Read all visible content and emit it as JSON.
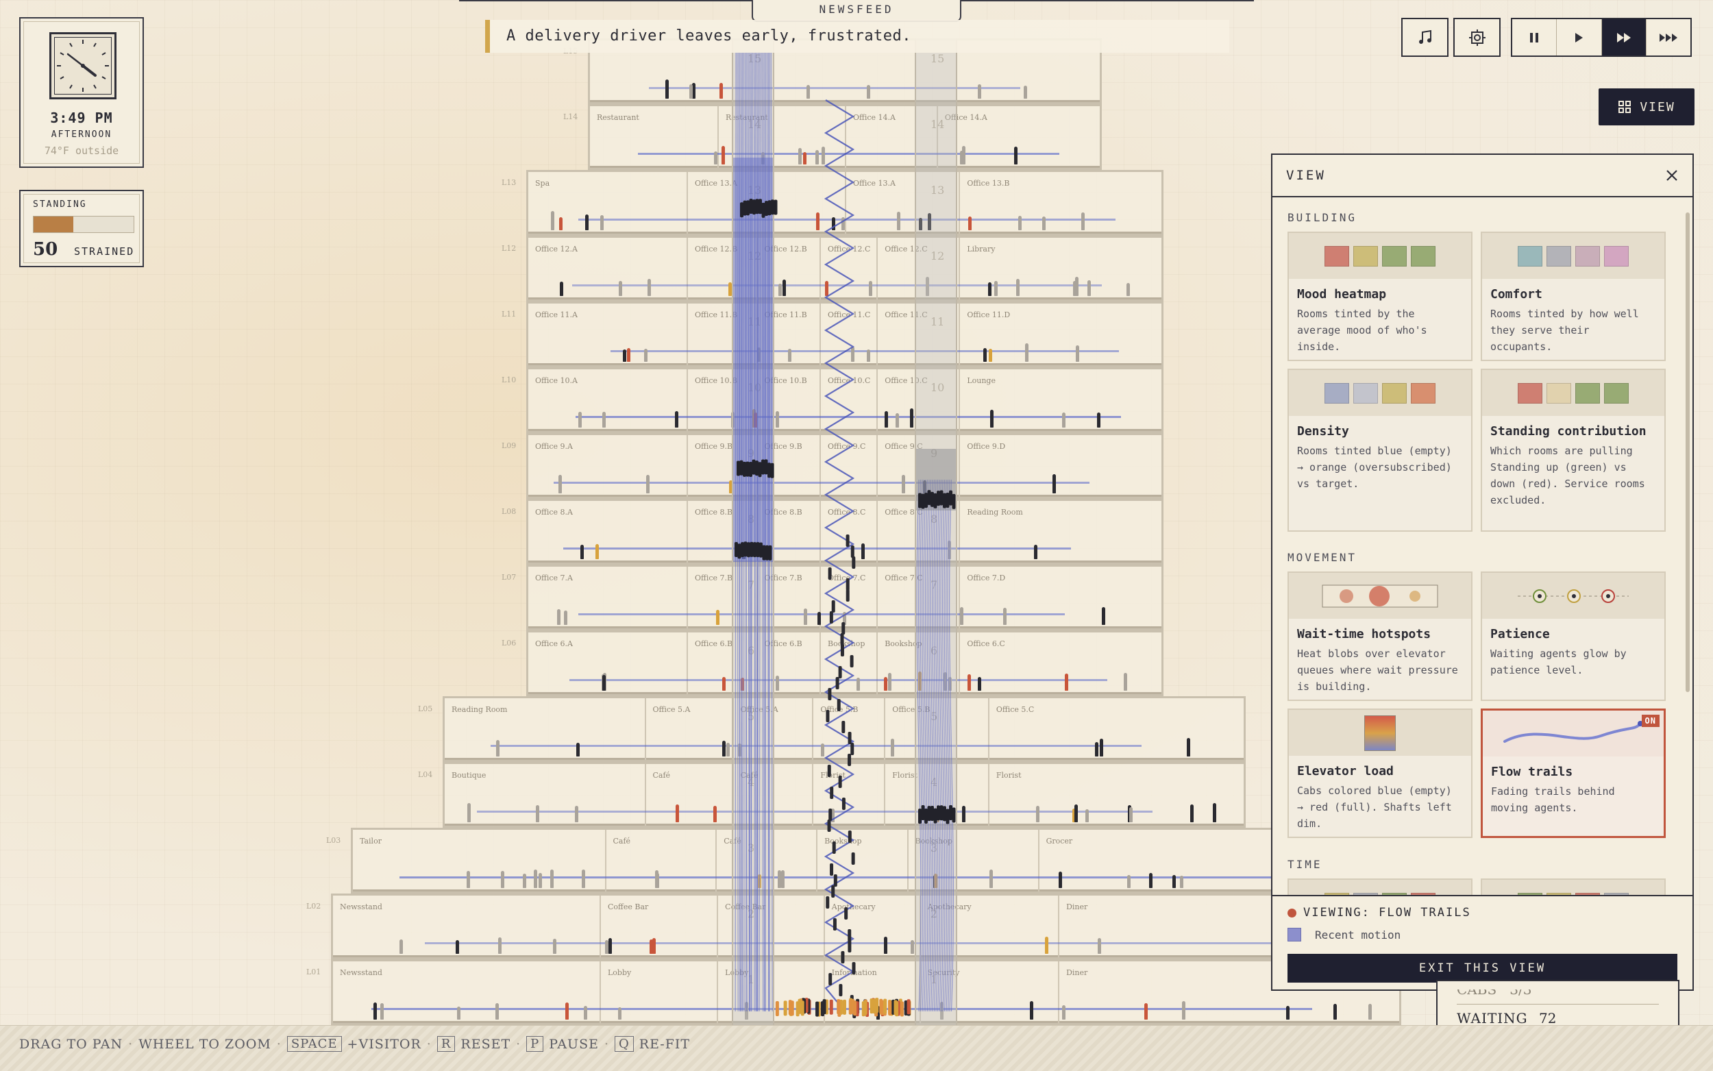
{
  "clock": {
    "time": "3:49 PM",
    "period": "AFTERNOON",
    "temperature": "74°F outside"
  },
  "standing": {
    "label": "STANDING",
    "value": "50",
    "status": "STRAINED",
    "fill_fraction": 0.4,
    "fill_color": "#b97f45"
  },
  "newsfeed": {
    "tab_label": "NEWSFEED",
    "message": "A delivery driver leaves early, frustrated."
  },
  "controls": {
    "music": "music-note-icon",
    "settings": "gear-icon",
    "speeds": [
      "pause",
      "play",
      "fast-forward",
      "fastest"
    ],
    "active_speed": "fast-forward",
    "view_button": "VIEW"
  },
  "building": {
    "floors": [
      {
        "label": "L15",
        "rooms": []
      },
      {
        "label": "L14",
        "rooms": [
          "Restaurant",
          "Restaurant",
          "Office 14.A",
          "Office 14.A"
        ]
      },
      {
        "label": "L13",
        "rooms": [
          "Spa",
          "Office 13.A",
          "Office 13.A",
          "Office 13.B"
        ]
      },
      {
        "label": "L12",
        "rooms": [
          "Office 12.A",
          "Office 12.B",
          "Office 12.B",
          "Office 12.C",
          "Office 12.C",
          "Library"
        ]
      },
      {
        "label": "L11",
        "rooms": [
          "Office 11.A",
          "Office 11.B",
          "Office 11.B",
          "Office 11.C",
          "Office 11.C",
          "Office 11.D"
        ]
      },
      {
        "label": "L10",
        "rooms": [
          "Office 10.A",
          "Office 10.B",
          "Office 10.B",
          "Office 10.C",
          "Office 10.C",
          "Lounge"
        ]
      },
      {
        "label": "L09",
        "rooms": [
          "Office 9.A",
          "Office 9.B",
          "Office 9.B",
          "Office 9.C",
          "Office 9.C",
          "Office 9.D"
        ]
      },
      {
        "label": "L08",
        "rooms": [
          "Office 8.A",
          "Office 8.B",
          "Office 8.B",
          "Office 8.C",
          "Office 8.C",
          "Reading Room"
        ]
      },
      {
        "label": "L07",
        "rooms": [
          "Office 7.A",
          "Office 7.B",
          "Office 7.B",
          "Office 7.C",
          "Office 7.C",
          "Office 7.D"
        ]
      },
      {
        "label": "L06",
        "rooms": [
          "Office 6.A",
          "Office 6.B",
          "Office 6.B",
          "Bookshop",
          "Bookshop",
          "Office 6.C"
        ]
      },
      {
        "label": "L05",
        "rooms": [
          "Reading Room",
          "Office 5.A",
          "Office 5.A",
          "Office 5.B",
          "Office 5.B",
          "Office 5.C"
        ]
      },
      {
        "label": "L04",
        "rooms": [
          "Boutique",
          "Café",
          "Café",
          "Florist",
          "Florist",
          "Florist"
        ]
      },
      {
        "label": "L03",
        "rooms": [
          "Tailor",
          "Café",
          "Café",
          "Bookshop",
          "Bookshop",
          "Grocer"
        ]
      },
      {
        "label": "L02",
        "rooms": [
          "Newsstand",
          "Coffee Bar",
          "Coffee Bar",
          "Apothecary",
          "Apothecary",
          "Diner"
        ]
      },
      {
        "label": "L01",
        "rooms": [
          "Newsstand",
          "Lobby",
          "Lobby",
          "Information",
          "Security",
          "Diner"
        ]
      }
    ],
    "shaft_numbers": [
      "15",
      "14",
      "13",
      "12",
      "11",
      "10",
      "9",
      "8",
      "7",
      "6",
      "5",
      "4",
      "3",
      "2",
      "1"
    ]
  },
  "view_panel": {
    "title": "VIEW",
    "close_icon": "close-icon",
    "sections": {
      "building": "BUILDING",
      "movement": "MOVEMENT",
      "time": "TIME"
    },
    "building_cards": [
      {
        "title": "Mood heatmap",
        "desc": "Rooms tinted by the average mood of who's inside.",
        "swatches": [
          "#cf7f72",
          "#cdbd79",
          "#98ab74",
          "#98ab74"
        ]
      },
      {
        "title": "Comfort",
        "desc": "Rooms tinted by how well they serve their occupants.",
        "swatches": [
          "#9ab8ba",
          "#b3b3b8",
          "#c9aeb9",
          "#d3a6c1"
        ]
      },
      {
        "title": "Density",
        "desc": "Rooms tinted blue (empty) → orange (oversubscribed) vs target.",
        "swatches": [
          "#a7adc4",
          "#c3c4cc",
          "#cdbd79",
          "#d88f6f"
        ]
      },
      {
        "title": "Standing contribution",
        "desc": "Which rooms are pulling Standing up (green) vs down (red). Service rooms excluded.",
        "swatches": [
          "#cf7f72",
          "#e1d2ae",
          "#98ab74",
          "#98ab74"
        ]
      }
    ],
    "movement_cards": [
      {
        "title": "Wait-time hotspots",
        "desc": "Heat blobs over elevator queues where wait pressure is building."
      },
      {
        "title": "Patience",
        "desc": "Waiting agents glow by patience level."
      },
      {
        "title": "Elevator load",
        "desc": "Cabs colored blue (empty) → red (full). Shafts left dim."
      },
      {
        "title": "Flow trails",
        "desc": "Fading trails behind moving agents.",
        "on": true,
        "badge": "ON"
      }
    ],
    "time_card_swatches": [
      "#cdbd79",
      "#b3b3b8",
      "#98ab74",
      "#cf7f72"
    ],
    "footer": {
      "viewing": "VIEWING: FLOW TRAILS",
      "legend": "Recent motion",
      "exit": "EXIT THIS VIEW"
    }
  },
  "stats": {
    "cabs_label": "CABS",
    "cabs_value": "3/3",
    "waiting_label": "WAITING",
    "waiting_value": "72"
  },
  "hints": {
    "drag": "DRAG TO PAN",
    "wheel": "WHEEL TO ZOOM",
    "space_key": "SPACE",
    "space_action": "+VISITOR",
    "r_key": "R",
    "r_action": "RESET",
    "p_key": "P",
    "p_action": "PAUSE",
    "q_key": "Q",
    "q_action": "RE-FIT"
  },
  "colors": {
    "accent_dark": "#1f2030",
    "trail_blue": "#5a66c8",
    "on_red": "#c0553d",
    "newsfeed_gold": "#d1a64c"
  }
}
